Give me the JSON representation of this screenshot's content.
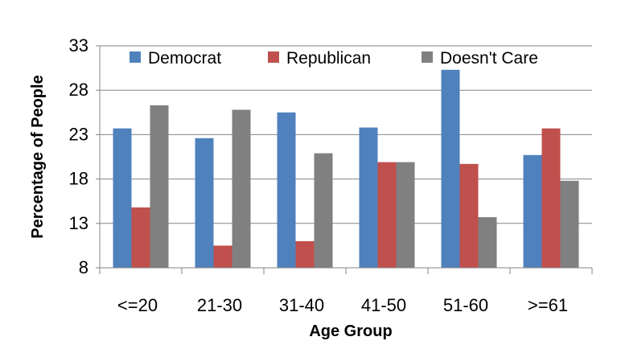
{
  "chart_data": {
    "type": "bar",
    "title": "",
    "xlabel": "Age Group",
    "ylabel": "Percentage of People",
    "categories": [
      "<=20",
      "21-30",
      "31-40",
      "41-50",
      "51-60",
      ">=61"
    ],
    "series": [
      {
        "name": "Democrat",
        "color": "#4F81BD",
        "values": [
          23.7,
          22.6,
          25.5,
          23.8,
          30.3,
          20.7
        ]
      },
      {
        "name": "Republican",
        "color": "#C0504D",
        "values": [
          14.8,
          10.5,
          11.0,
          19.9,
          19.7,
          23.7
        ]
      },
      {
        "name": "Doesn't Care",
        "color": "#808080",
        "values": [
          26.3,
          25.8,
          20.9,
          19.9,
          13.7,
          17.8
        ]
      }
    ],
    "ylim": [
      8,
      33
    ],
    "yticks": [
      "8",
      "13",
      "18",
      "23",
      "28",
      "33"
    ],
    "grid": true,
    "legend_position": "top"
  }
}
